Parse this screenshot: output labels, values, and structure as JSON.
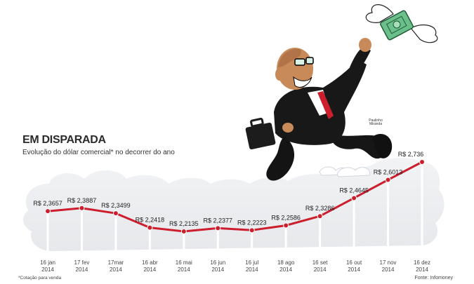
{
  "title": "EM DISPARADA",
  "subtitle": "Evolução do dólar comercial* no decorrer do ano",
  "footnote": "*Cotação para venda",
  "source": "Fonte: Infomoney",
  "signature": "Paulinho Miranda",
  "colors": {
    "line": "#cc1e2c",
    "marker": "#cc1e2c",
    "text": "#222222",
    "cloud": "#eceef0"
  },
  "chart_data": {
    "type": "line",
    "categories": [
      "16 jan 2014",
      "17 fev 2014",
      "17mar 2014",
      "16 abr 2014",
      "16 mai 2014",
      "16 jun 2014",
      "16 jul 2014",
      "18 ago 2014",
      "16 set 2014",
      "16 out 2014",
      "17 nov 2014",
      "16 dez 2014"
    ],
    "values": [
      2.3657,
      2.3887,
      2.3499,
      2.2418,
      2.2135,
      2.2377,
      2.2223,
      2.2586,
      2.3286,
      2.4645,
      2.6013,
      2.736
    ],
    "data_labels": [
      "R$ 2,3657",
      "R$ 2,3887",
      "R$ 2,3499",
      "R$ 2,2418",
      "R$ 2,2135",
      "R$ 2,2377",
      "R$ 2,2223",
      "R$ 2,2586",
      "R$ 2,3286",
      "R$ 2,4645",
      "R$ 2,6013",
      "R$ 2,736"
    ],
    "title": "EM DISPARADA",
    "subtitle": "Evolução do dólar comercial* no decorrer do ano",
    "ylim": [
      2.0,
      2.8
    ],
    "grid": false,
    "legend": "none"
  }
}
